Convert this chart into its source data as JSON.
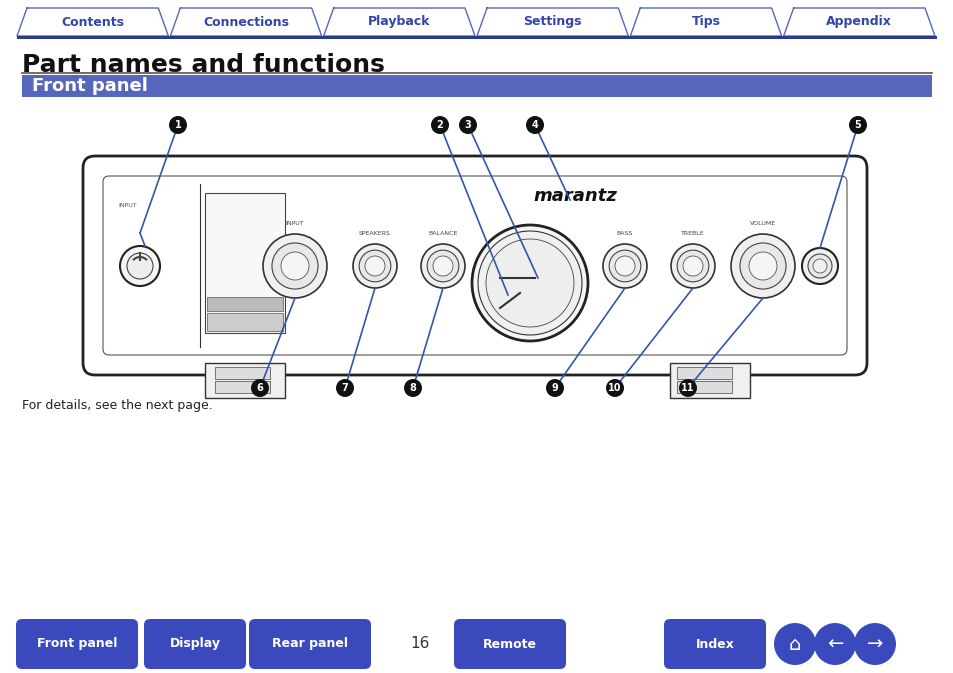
{
  "bg_color": "#ffffff",
  "tab_labels": [
    "Contents",
    "Connections",
    "Playback",
    "Settings",
    "Tips",
    "Appendix"
  ],
  "tab_color": "#ffffff",
  "tab_border_color": "#5566bb",
  "tab_text_color": "#3344aa",
  "tab_bar_color": "#2b3a8a",
  "title_text": "Part names and functions",
  "title_fontsize": 18,
  "section_bg": "#5566bb",
  "section_text": "Front panel",
  "section_text_color": "#ffffff",
  "section_fontsize": 13,
  "callout_color": "#3355aa",
  "note_text": "For details, see the next page.",
  "page_number": "16",
  "bottom_buttons": [
    "Front panel",
    "Display",
    "Rear panel",
    "Remote",
    "Index"
  ],
  "bottom_btn_color": "#3a49bb",
  "bottom_btn_text_color": "#ffffff",
  "device_fill": "#ffffff",
  "device_edge": "#222222",
  "knob_outer": "#e8e8e8",
  "knob_inner": "#f0f0f0",
  "knob_edge": "#333333"
}
